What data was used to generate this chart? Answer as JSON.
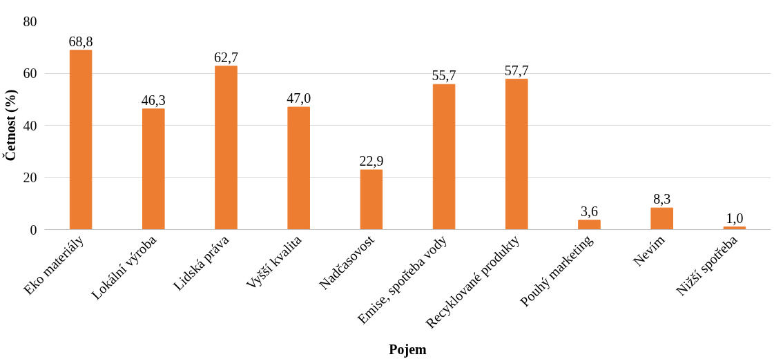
{
  "chart_data": {
    "type": "bar",
    "xlabel": "Pojem",
    "ylabel": "Četnost (%)",
    "categories": [
      "Eko materiály",
      "Lokální výroba",
      "Lidská práva",
      "Vyšší kvalita",
      "Nadčasovost",
      "Emise, spotřeba vody",
      "Recyklované produkty",
      "Pouhý marketing",
      "Nevím",
      "Nižší spotřeba"
    ],
    "values": [
      68.8,
      46.3,
      62.7,
      47.0,
      22.9,
      55.7,
      57.7,
      3.6,
      8.3,
      1.0
    ],
    "value_labels": [
      "68,8",
      "46,3",
      "62,7",
      "47,0",
      "22,9",
      "55,7",
      "57,7",
      "3,6",
      "8,3",
      "1,0"
    ],
    "color": "#ed7d31",
    "ylim": [
      0,
      80
    ],
    "yticks": [
      0,
      20,
      40,
      60,
      80
    ],
    "grid": "y"
  }
}
